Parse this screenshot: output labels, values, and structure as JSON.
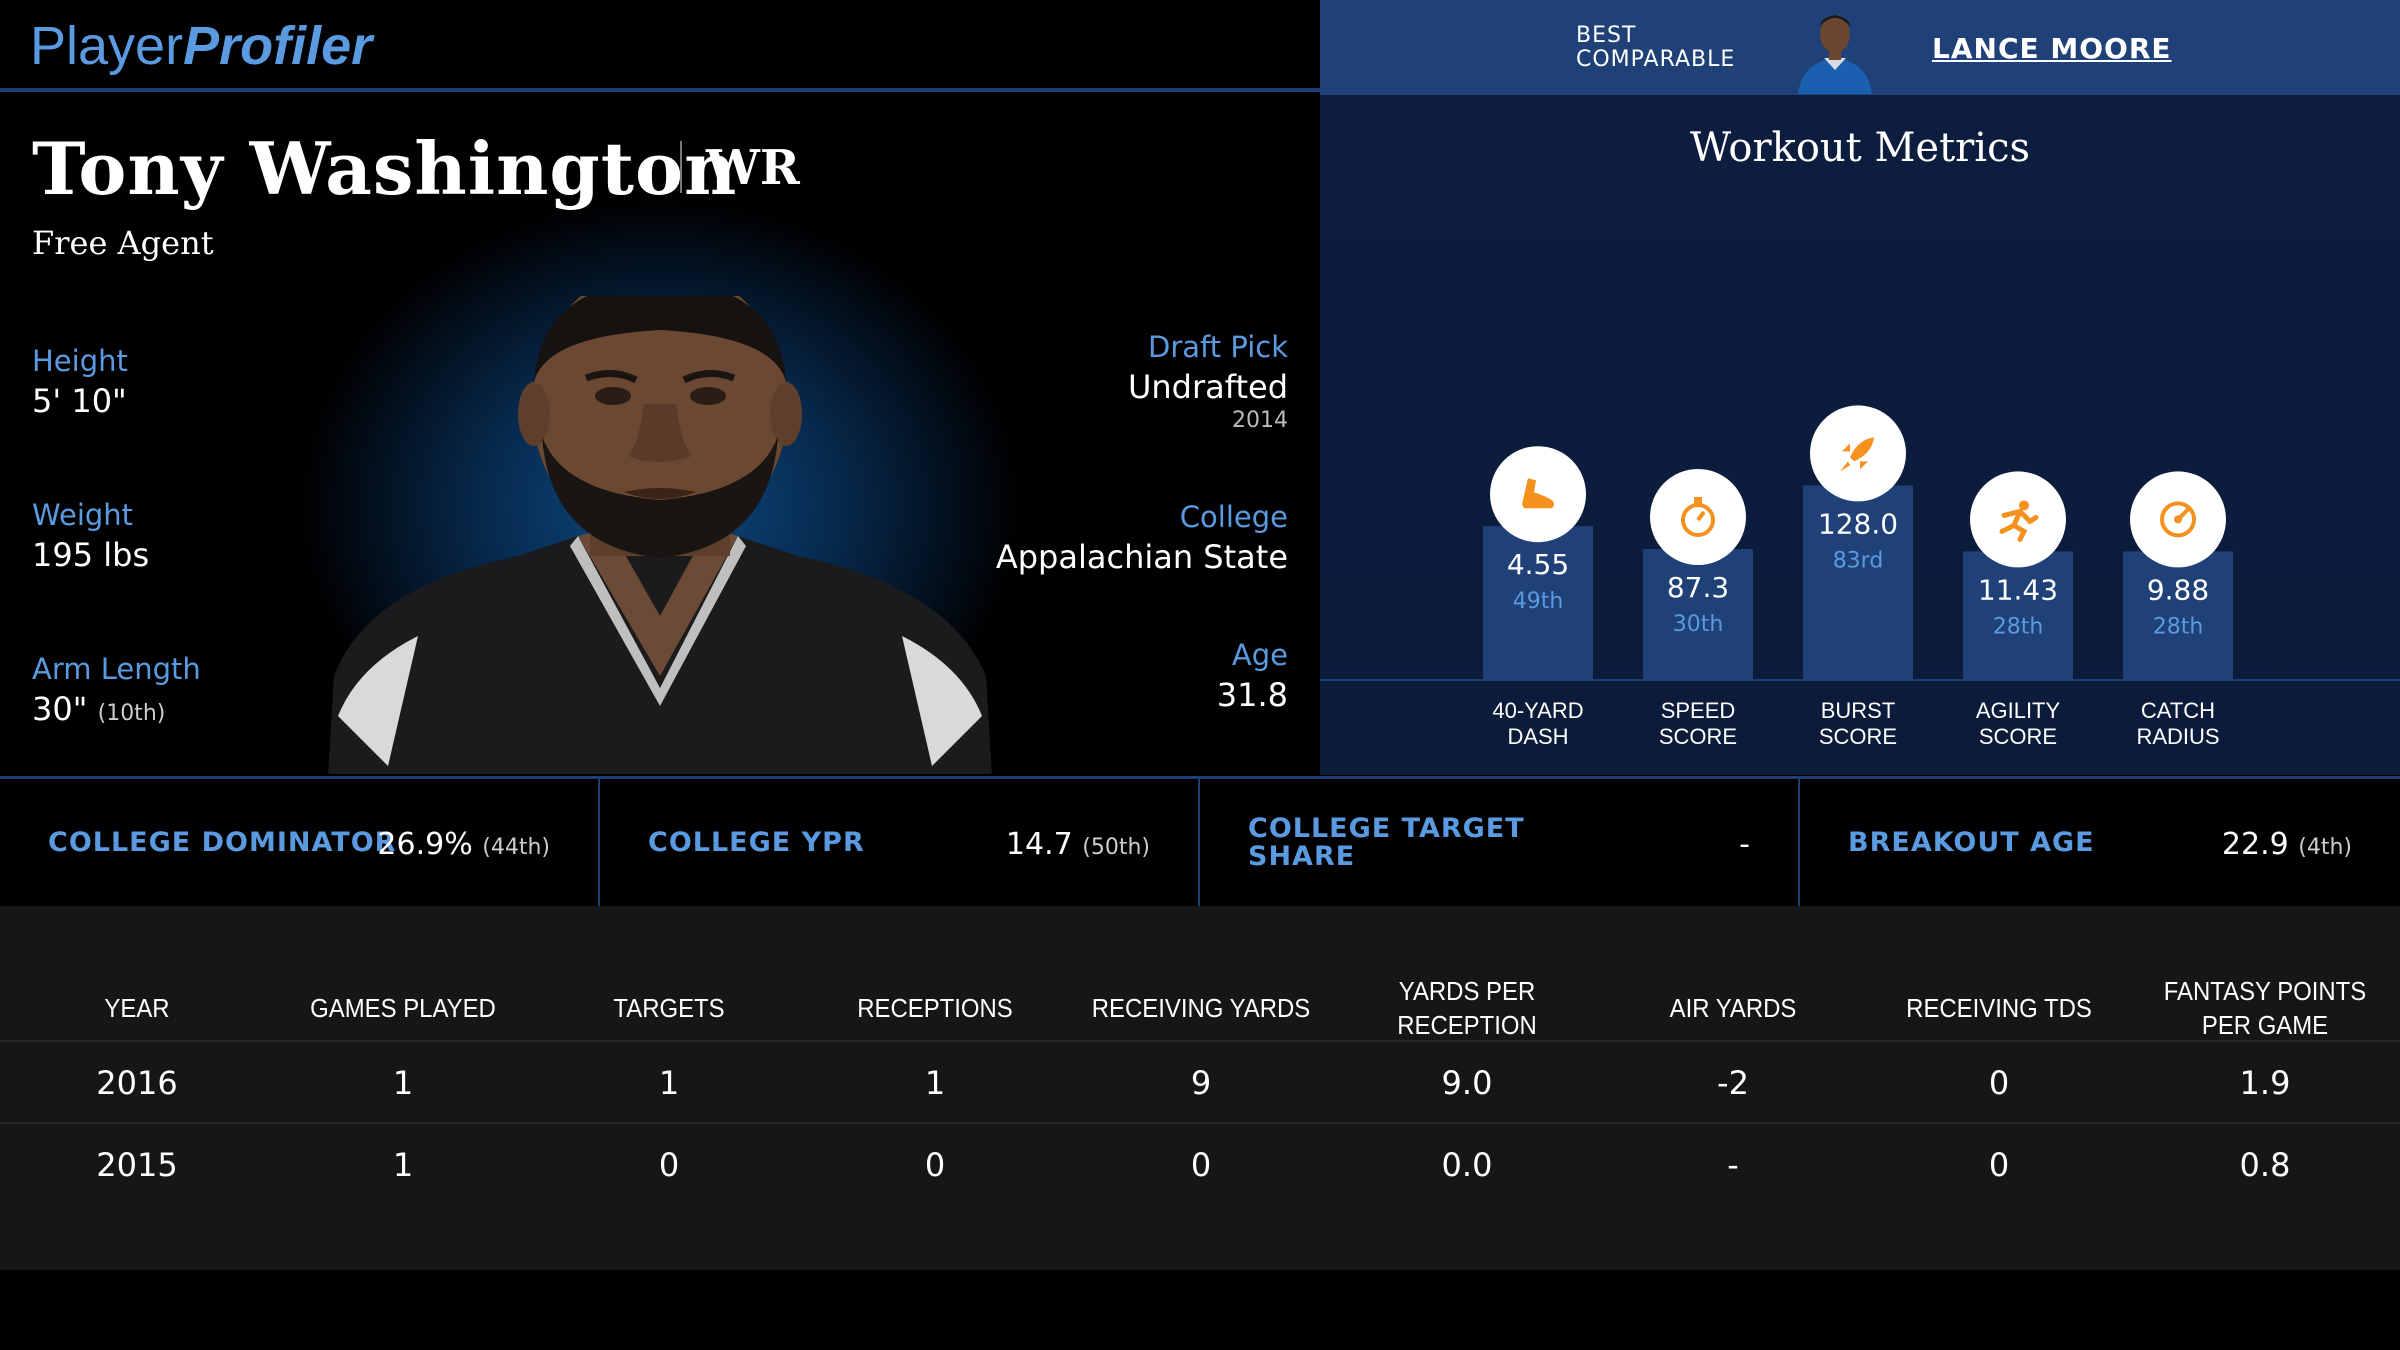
{
  "header": {
    "logo_part1": "Player",
    "logo_part2": "Profiler",
    "best_comparable_label": "BEST COMPARABLE",
    "best_comparable_name": "LANCE MOORE"
  },
  "player": {
    "name": "Tony Washington",
    "position": "WR",
    "team": "Free Agent",
    "height_label": "Height",
    "height_value": "5' 10\"",
    "weight_label": "Weight",
    "weight_value": "195 lbs",
    "arm_label": "Arm Length",
    "arm_value": "30\"",
    "arm_rank": "(10th)",
    "draft_label": "Draft Pick",
    "draft_value": "Undrafted",
    "draft_year": "2014",
    "college_label": "College",
    "college_value": "Appalachian State",
    "age_label": "Age",
    "age_value": "31.8"
  },
  "workout": {
    "title": "Workout Metrics",
    "bars": [
      {
        "value": "4.55",
        "rank": "49th",
        "percentile": 49,
        "label1": "40-YARD",
        "label2": "DASH",
        "icon": "shoe-icon"
      },
      {
        "value": "87.3",
        "rank": "30th",
        "percentile": 30,
        "label1": "SPEED",
        "label2": "SCORE",
        "icon": "stopwatch-icon"
      },
      {
        "value": "128.0",
        "rank": "83rd",
        "percentile": 83,
        "label1": "BURST",
        "label2": "SCORE",
        "icon": "rocket-icon"
      },
      {
        "value": "11.43",
        "rank": "28th",
        "percentile": 28,
        "label1": "AGILITY",
        "label2": "SCORE",
        "icon": "runner-icon"
      },
      {
        "value": "9.88",
        "rank": "28th",
        "percentile": 28,
        "label1": "CATCH",
        "label2": "RADIUS",
        "icon": "target-icon"
      }
    ],
    "bar_color": "#1f4177",
    "icon_color": "#f5921e"
  },
  "metrics": [
    {
      "label": "COLLEGE DOMINATOR",
      "value": "26.9%",
      "rank": "(44th)"
    },
    {
      "label": "COLLEGE YPR",
      "value": "14.7",
      "rank": "(50th)"
    },
    {
      "label": "COLLEGE TARGET SHARE",
      "value": "-",
      "rank": ""
    },
    {
      "label": "BREAKOUT AGE",
      "value": "22.9",
      "rank": "(4th)"
    }
  ],
  "stats": {
    "headers": [
      "YEAR",
      "GAMES PLAYED",
      "TARGETS",
      "RECEPTIONS",
      "RECEIVING YARDS",
      "YARDS PER RECEPTION",
      "AIR YARDS",
      "RECEIVING TDS",
      "FANTASY POINTS PER GAME"
    ],
    "rows": [
      [
        "2016",
        "1",
        "1",
        "1",
        "9",
        "9.0",
        "-2",
        "0",
        "1.9"
      ],
      [
        "2015",
        "1",
        "0",
        "0",
        "0",
        "0.0",
        "-",
        "0",
        "0.8"
      ]
    ]
  },
  "colors": {
    "accent_blue": "#5a9ae0",
    "header_blue": "#1f4177",
    "panel_navy": "#0d1d3f",
    "table_bg": "#161616"
  }
}
